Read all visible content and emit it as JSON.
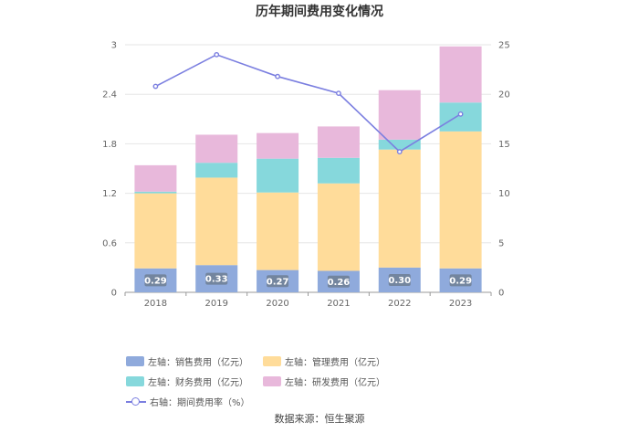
{
  "chart_data": {
    "type": "bar",
    "title": "历年期间费用变化情况",
    "categories": [
      "2018",
      "2019",
      "2020",
      "2021",
      "2022",
      "2023"
    ],
    "stacked": true,
    "left_axis": {
      "ticks": [
        "0",
        "0.6",
        "1.2",
        "1.8",
        "2.4",
        "3"
      ],
      "range": [
        0,
        3
      ]
    },
    "right_axis": {
      "ticks": [
        "0",
        "5",
        "10",
        "15",
        "20",
        "25"
      ],
      "range": [
        0,
        25
      ]
    },
    "series": [
      {
        "name": "左轴：销售费用（亿元）",
        "color": "#8faadc",
        "values": [
          0.29,
          0.33,
          0.27,
          0.26,
          0.3,
          0.29
        ],
        "labels": [
          "0.29",
          "0.33",
          "0.27",
          "0.26",
          "0.30",
          "0.29"
        ]
      },
      {
        "name": "左轴：管理费用（亿元）",
        "color": "#ffdc9a",
        "values": [
          0.91,
          1.06,
          0.94,
          1.06,
          1.43,
          1.66
        ]
      },
      {
        "name": "左轴：财务费用（亿元）",
        "color": "#86d8dc",
        "values": [
          0.02,
          0.18,
          0.41,
          0.31,
          0.12,
          0.35
        ]
      },
      {
        "name": "左轴：研发费用（亿元）",
        "color": "#e8b8db",
        "values": [
          0.32,
          0.34,
          0.31,
          0.38,
          0.6,
          0.68
        ]
      }
    ],
    "line": {
      "name": "右轴：期间费用率（%）",
      "color": "#7b7fe0",
      "values": [
        20.8,
        24.0,
        21.8,
        20.1,
        14.2,
        18.0
      ]
    },
    "legend_position": "bottom"
  },
  "source": "数据来源：恒生聚源"
}
